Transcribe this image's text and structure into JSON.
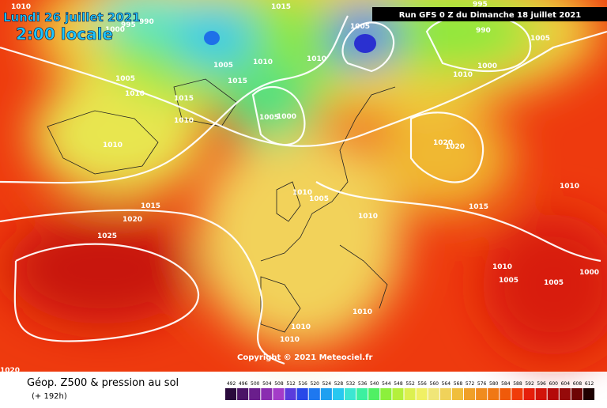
{
  "header": {
    "valid_date": "Lundi 26 juillet 2021",
    "local_time": "2:00 locale",
    "run": "Run GFS 0 Z du Dimanche 18 juillet 2021",
    "copyright": "Copyright © 2021 Meteociel.fr"
  },
  "footer": {
    "title": "Géop. Z500 & pression au sol",
    "lead": "(+ 192h)"
  },
  "isobar_labels": [
    "1010",
    "990",
    "995",
    "1000",
    "1015",
    "1005",
    "995",
    "990",
    "1005",
    "1005",
    "1010",
    "1010",
    "1000",
    "1010",
    "1005",
    "1010",
    "1015",
    "1015",
    "1010",
    "1005",
    "1000",
    "1010",
    "1020",
    "1020",
    "1010",
    "1010",
    "1005",
    "1015",
    "1010",
    "1015",
    "1020",
    "1025",
    "1010",
    "1005",
    "1005",
    "1000",
    "1010",
    "1010",
    "1010",
    "1020"
  ],
  "scale_ticks": [
    492,
    496,
    500,
    504,
    508,
    512,
    516,
    520,
    524,
    528,
    532,
    536,
    540,
    544,
    548,
    552,
    556,
    560,
    564,
    568,
    572,
    576,
    580,
    584,
    588,
    592,
    596,
    600,
    604,
    608,
    612
  ],
  "scale_colors": [
    "#2a0a3c",
    "#4b1466",
    "#6a1e8c",
    "#8a2db0",
    "#a43cc8",
    "#5a3cdc",
    "#2848e8",
    "#1e78f0",
    "#1ea0f0",
    "#28c8f0",
    "#3ce6d2",
    "#3cf0a0",
    "#50f064",
    "#8cf03c",
    "#b4f03c",
    "#dcf050",
    "#f0f064",
    "#f0e678",
    "#f0d25a",
    "#f0be3c",
    "#f0a028",
    "#f08c1e",
    "#f07814",
    "#f05a0a",
    "#f03c0a",
    "#e61e0a",
    "#d2140a",
    "#b40a0a",
    "#960a0a",
    "#6e0505",
    "#1e0000"
  ]
}
